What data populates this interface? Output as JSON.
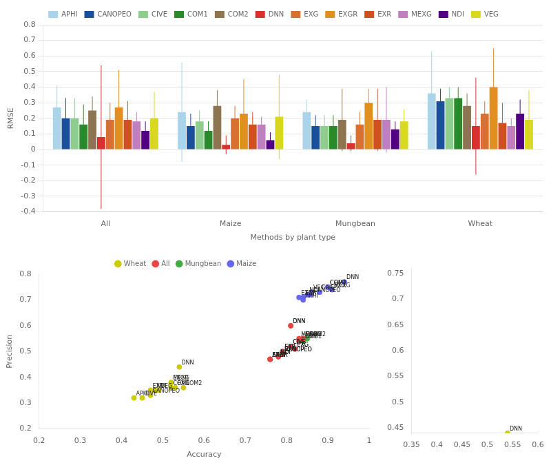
{
  "chart_data": [
    {
      "type": "bar",
      "categories": [
        "All",
        "Maize",
        "Mungbean",
        "Wheat"
      ],
      "xlabel": "Methods by plant type",
      "ylabel": "RMSE",
      "ylim": [
        -0.4,
        0.8
      ],
      "yticks": [
        -0.4,
        -0.3,
        -0.2,
        -0.1,
        0,
        0.1,
        0.2,
        0.3,
        0.4,
        0.5,
        0.6,
        0.7,
        0.8
      ],
      "grid": true,
      "legend": "top",
      "series": [
        {
          "name": "APHI",
          "color": "#aad4ea",
          "values": [
            0.27,
            0.24,
            0.24,
            0.36
          ],
          "errors": [
            0.14,
            0.32,
            0.08,
            0.27
          ]
        },
        {
          "name": "CANOPEO",
          "color": "#1a4f9c",
          "values": [
            0.2,
            0.15,
            0.15,
            0.31
          ],
          "errors": [
            0.13,
            0.08,
            0.07,
            0.08
          ]
        },
        {
          "name": "CIVE",
          "color": "#8fcd8f",
          "values": [
            0.2,
            0.18,
            0.15,
            0.33
          ],
          "errors": [
            0.13,
            0.07,
            0.07,
            0.07
          ]
        },
        {
          "name": "COM1",
          "color": "#2a8a2a",
          "values": [
            0.16,
            0.12,
            0.15,
            0.33
          ],
          "errors": [
            0.13,
            0.06,
            0.07,
            0.07
          ]
        },
        {
          "name": "COM2",
          "color": "#8c7550",
          "values": [
            0.25,
            0.28,
            0.19,
            0.28
          ],
          "errors": [
            0.09,
            0.1,
            0.2,
            0.08
          ]
        },
        {
          "name": "DNN",
          "color": "#d93030",
          "values": [
            0.08,
            0.03,
            0.04,
            0.15
          ],
          "errors": [
            0.46,
            0.06,
            0.05,
            0.31
          ]
        },
        {
          "name": "EXG",
          "color": "#d87030",
          "values": [
            0.19,
            0.2,
            0.16,
            0.23
          ],
          "errors": [
            0.11,
            0.08,
            0.08,
            0.08
          ]
        },
        {
          "name": "EXGR",
          "color": "#e09020",
          "values": [
            0.27,
            0.23,
            0.3,
            0.4
          ],
          "errors": [
            0.24,
            0.22,
            0.09,
            0.25
          ]
        },
        {
          "name": "EXR",
          "color": "#d05020",
          "values": [
            0.19,
            0.16,
            0.19,
            0.17
          ],
          "errors": [
            0.12,
            0.08,
            0.2,
            0.13
          ]
        },
        {
          "name": "MEXG",
          "color": "#c080c0",
          "values": [
            0.18,
            0.16,
            0.19,
            0.15
          ],
          "errors": [
            0.06,
            0.05,
            0.21,
            0.05
          ]
        },
        {
          "name": "NDI",
          "color": "#500080",
          "values": [
            0.12,
            0.06,
            0.13,
            0.23
          ],
          "errors": [
            0.06,
            0.05,
            0.05,
            0.09
          ]
        },
        {
          "name": "VEG",
          "color": "#d8d820",
          "values": [
            0.2,
            0.21,
            0.18,
            0.19
          ],
          "errors": [
            0.17,
            0.27,
            0.08,
            0.19
          ]
        }
      ]
    },
    {
      "type": "scatter",
      "xlabel": "Accuracy",
      "ylabel": "Precision",
      "xlim": [
        0.2,
        1.0
      ],
      "ylim": [
        0.2,
        0.8
      ],
      "xticks": [
        0.2,
        0.3,
        0.4,
        0.5,
        0.6,
        0.7,
        0.8,
        0.9,
        1
      ],
      "yticks": [
        0.2,
        0.3,
        0.4,
        0.5,
        0.6,
        0.7,
        0.8
      ],
      "grid": false,
      "legend": "top",
      "series": [
        {
          "name": "Wheat",
          "color": "#cccc00",
          "x": [
            0.43,
            0.47,
            0.45,
            0.52,
            0.55,
            0.54,
            0.53,
            0.52,
            0.47,
            0.52,
            0.48,
            0.49
          ],
          "y": [
            0.32,
            0.33,
            0.32,
            0.36,
            0.36,
            0.44,
            0.36,
            0.38,
            0.35,
            0.38,
            0.35,
            0.35
          ],
          "labels": [
            "APHI",
            "CANOPEO",
            "CIVE",
            "COM1",
            "COM2",
            "DNN",
            "EXG",
            "EXGR",
            "EXR",
            "MEXG",
            "NDI",
            "VEG"
          ]
        },
        {
          "name": "All",
          "color": "#ee4444",
          "x": [
            0.76,
            0.79,
            0.81,
            0.83,
            0.84,
            0.81,
            0.82,
            0.76,
            0.79,
            0.83,
            0.78,
            0.79
          ],
          "y": [
            0.47,
            0.49,
            0.52,
            0.54,
            0.55,
            0.6,
            0.51,
            0.47,
            0.5,
            0.55,
            0.48,
            0.49
          ],
          "labels": [
            "APHI",
            "CANOPEO",
            "CIVE",
            "COM1",
            "COM2",
            "DNN",
            "EXG",
            "EXGR",
            "EXR",
            "MEXG",
            "NDI",
            "VEG"
          ]
        },
        {
          "name": "Mungbean",
          "color": "#44aa44",
          "x": [
            0.76,
            0.79,
            0.81,
            0.84,
            0.85,
            0.81,
            0.82,
            0.76,
            0.79,
            0.84,
            0.78,
            0.79
          ],
          "y": [
            0.47,
            0.49,
            0.52,
            0.54,
            0.55,
            0.6,
            0.51,
            0.47,
            0.5,
            0.55,
            0.48,
            0.49
          ],
          "labels": [
            "APHI",
            "CANOPEO",
            "CIVE",
            "COM1",
            "COM2",
            "DNN",
            "EXG",
            "EXGR",
            "EXR",
            "MEXG",
            "NDI",
            "VEG"
          ]
        },
        {
          "name": "Maize",
          "color": "#6666ee",
          "x": [
            0.84,
            0.86,
            0.88,
            0.9,
            0.9,
            0.94,
            0.91,
            0.83,
            0.84,
            0.91,
            0.85,
            0.86
          ],
          "y": [
            0.7,
            0.72,
            0.73,
            0.75,
            0.75,
            0.77,
            0.74,
            0.71,
            0.71,
            0.74,
            0.72,
            0.73
          ],
          "labels": [
            "APHI",
            "CANOPEO",
            "CIVE",
            "COM1",
            "COM2",
            "DNN",
            "EXG",
            "EXGR",
            "EXR",
            "MEXG",
            "NDI",
            "VEG"
          ]
        }
      ]
    },
    {
      "type": "scatter",
      "xlim": [
        0.35,
        0.6
      ],
      "ylim": [
        0.44,
        0.76
      ],
      "xticks": [
        0.35,
        0.4,
        0.45,
        0.5,
        0.55,
        0.6
      ],
      "yticks": [
        0.45,
        0.5,
        0.55,
        0.6,
        0.65,
        0.7,
        0.75
      ],
      "grid": false,
      "series": [
        {
          "name": "Wheat",
          "color": "#cccc00",
          "x": [
            0.54
          ],
          "y": [
            0.44
          ],
          "labels": [
            "DNN"
          ]
        }
      ]
    }
  ]
}
